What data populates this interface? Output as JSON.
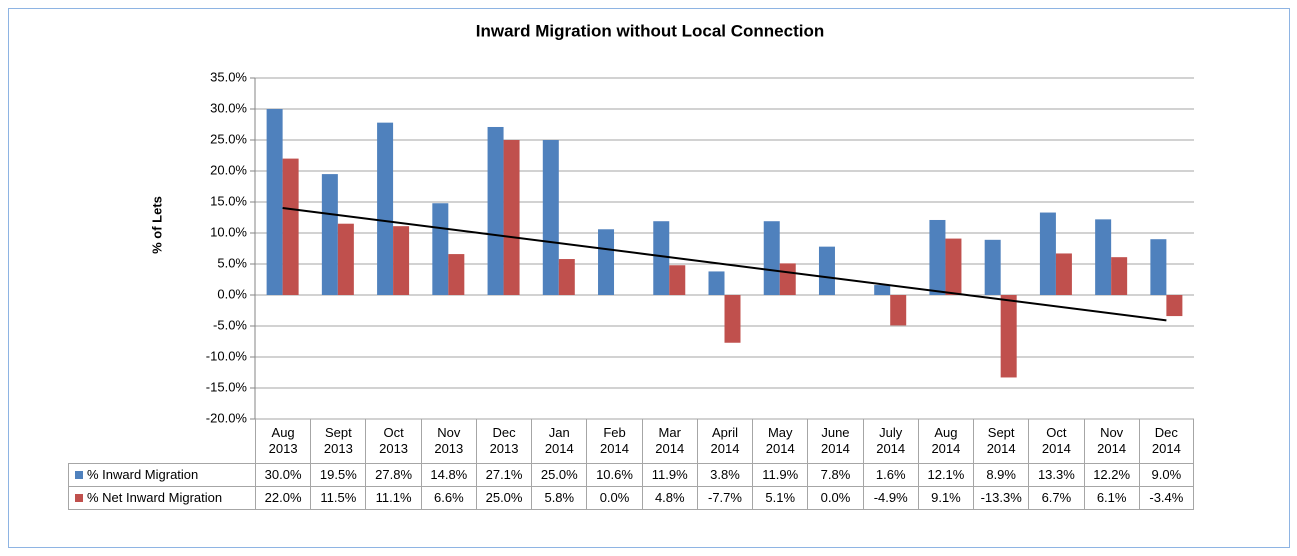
{
  "chart_data": {
    "type": "bar",
    "title": "Inward Migration without Local Connection",
    "y_label": "% of Lets",
    "categories": [
      "Aug 2013",
      "Sept 2013",
      "Oct 2013",
      "Nov 2013",
      "Dec 2013",
      "Jan 2014",
      "Feb 2014",
      "Mar 2014",
      "April 2014",
      "May 2014",
      "June 2014",
      "July 2014",
      "Aug 2014",
      "Sept 2014",
      "Oct 2014",
      "Nov 2014",
      "Dec 2014"
    ],
    "series": [
      {
        "name": "% Inward Migration",
        "color": "#4f81bd",
        "values": [
          30.0,
          19.5,
          27.8,
          14.8,
          27.1,
          25.0,
          10.6,
          11.9,
          3.8,
          11.9,
          7.8,
          1.6,
          12.1,
          8.9,
          13.3,
          12.2,
          9.0
        ],
        "value_labels": [
          "30.0%",
          "19.5%",
          "27.8%",
          "14.8%",
          "27.1%",
          "25.0%",
          "10.6%",
          "11.9%",
          "3.8%",
          "11.9%",
          "7.8%",
          "1.6%",
          "12.1%",
          "8.9%",
          "13.3%",
          "12.2%",
          "9.0%"
        ]
      },
      {
        "name": "% Net Inward Migration",
        "color": "#c0504d",
        "trendline": true,
        "values": [
          22.0,
          11.5,
          11.1,
          6.6,
          25.0,
          5.8,
          0.0,
          4.8,
          -7.7,
          5.1,
          0.0,
          -4.9,
          9.1,
          -13.3,
          6.7,
          6.1,
          -3.4
        ],
        "value_labels": [
          "22.0%",
          "11.5%",
          "11.1%",
          "6.6%",
          "25.0%",
          "5.8%",
          "0.0%",
          "4.8%",
          "-7.7%",
          "5.1%",
          "0.0%",
          "-4.9%",
          "9.1%",
          "-13.3%",
          "6.7%",
          "6.1%",
          "-3.4%"
        ]
      }
    ],
    "ylim": [
      -20,
      35
    ],
    "yticks": [
      {
        "value": -20,
        "label": "-20.0%"
      },
      {
        "value": -15,
        "label": "-15.0%"
      },
      {
        "value": -10,
        "label": "-10.0%"
      },
      {
        "value": -5,
        "label": "-5.0%"
      },
      {
        "value": 0,
        "label": "0.0%"
      },
      {
        "value": 5,
        "label": "5.0%"
      },
      {
        "value": 10,
        "label": "10.0%"
      },
      {
        "value": 15,
        "label": "15.0%"
      },
      {
        "value": 20,
        "label": "20.0%"
      },
      {
        "value": 25,
        "label": "25.0%"
      },
      {
        "value": 30,
        "label": "30.0%"
      },
      {
        "value": 35,
        "label": "35.0%"
      }
    ],
    "grid": true
  }
}
